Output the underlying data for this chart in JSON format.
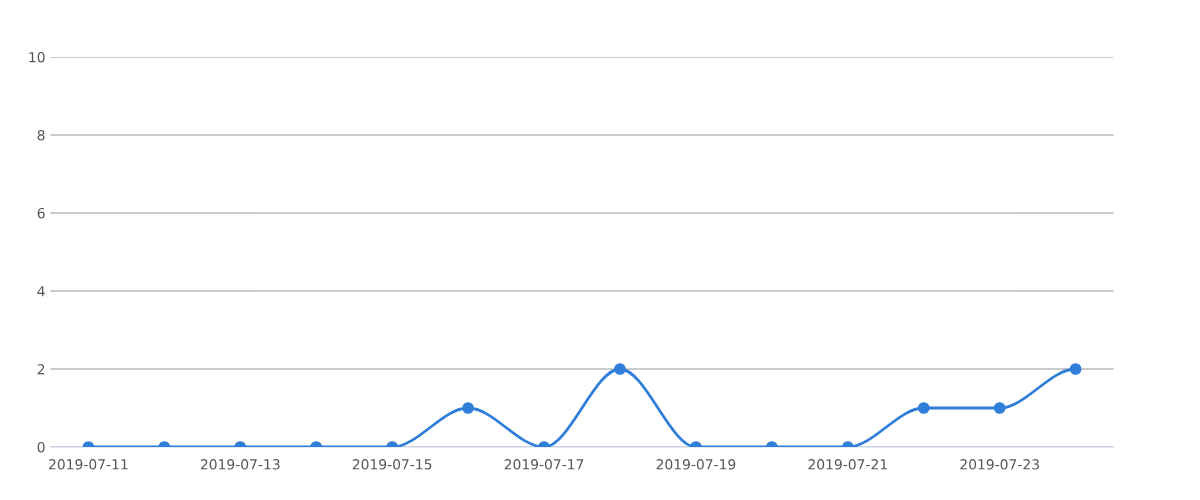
{
  "chart_data": {
    "type": "line",
    "categories": [
      "2019-07-11",
      null,
      "2019-07-13",
      null,
      "2019-07-15",
      null,
      "2019-07-17",
      null,
      "2019-07-19",
      null,
      "2019-07-21",
      null,
      "2019-07-23",
      null
    ],
    "series": [
      {
        "color": "#2f7ed8",
        "values": [
          0,
          0,
          0,
          0,
          0,
          1,
          0,
          2,
          0,
          0,
          0,
          1,
          1,
          2
        ]
      }
    ],
    "ylim": [
      0,
      10
    ],
    "yticks": [
      0,
      2,
      4,
      6,
      8,
      10
    ],
    "grid": "y",
    "marker": "circle",
    "line_style": "solid"
  }
}
